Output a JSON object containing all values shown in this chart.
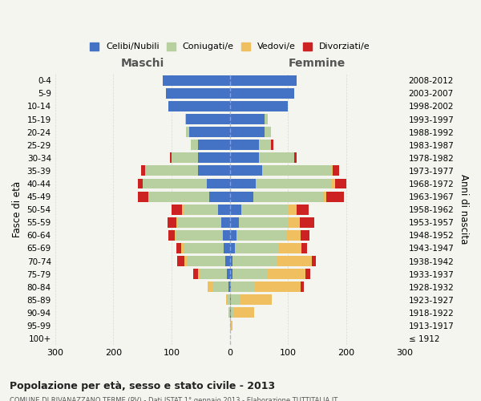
{
  "age_groups": [
    "100+",
    "95-99",
    "90-94",
    "85-89",
    "80-84",
    "75-79",
    "70-74",
    "65-69",
    "60-64",
    "55-59",
    "50-54",
    "45-49",
    "40-44",
    "35-39",
    "30-34",
    "25-29",
    "20-24",
    "15-19",
    "10-14",
    "5-9",
    "0-4"
  ],
  "birth_years": [
    "≤ 1912",
    "1913-1917",
    "1918-1922",
    "1923-1927",
    "1928-1932",
    "1933-1937",
    "1938-1942",
    "1943-1947",
    "1948-1952",
    "1953-1957",
    "1958-1962",
    "1963-1967",
    "1968-1972",
    "1973-1977",
    "1978-1982",
    "1983-1987",
    "1988-1992",
    "1993-1997",
    "1998-2002",
    "2003-2007",
    "2008-2012"
  ],
  "maschi": {
    "celibi": [
      0,
      0,
      0,
      0,
      2,
      5,
      8,
      10,
      12,
      15,
      20,
      35,
      40,
      55,
      55,
      55,
      70,
      75,
      105,
      110,
      115
    ],
    "coniugati": [
      0,
      0,
      2,
      5,
      28,
      45,
      65,
      70,
      80,
      75,
      60,
      105,
      110,
      90,
      45,
      12,
      5,
      2,
      0,
      0,
      0
    ],
    "vedovi": [
      0,
      0,
      0,
      2,
      8,
      5,
      5,
      4,
      3,
      2,
      2,
      0,
      0,
      0,
      0,
      0,
      0,
      0,
      0,
      0,
      0
    ],
    "divorziati": [
      0,
      0,
      0,
      0,
      0,
      8,
      12,
      8,
      10,
      15,
      18,
      18,
      8,
      8,
      3,
      0,
      0,
      0,
      0,
      0,
      0
    ]
  },
  "femmine": {
    "nubili": [
      0,
      0,
      2,
      2,
      2,
      5,
      5,
      8,
      12,
      15,
      20,
      40,
      45,
      55,
      50,
      50,
      60,
      60,
      100,
      110,
      115
    ],
    "coniugate": [
      0,
      2,
      5,
      15,
      40,
      60,
      75,
      75,
      85,
      85,
      80,
      120,
      130,
      120,
      60,
      20,
      10,
      5,
      0,
      0,
      0
    ],
    "vedove": [
      0,
      2,
      35,
      55,
      80,
      65,
      60,
      40,
      25,
      20,
      15,
      5,
      5,
      2,
      0,
      0,
      0,
      0,
      0,
      0,
      0
    ],
    "divorziate": [
      0,
      0,
      0,
      0,
      5,
      8,
      8,
      10,
      15,
      25,
      20,
      30,
      20,
      10,
      5,
      5,
      0,
      0,
      0,
      0,
      0
    ]
  },
  "colors": {
    "celibi_nubili": "#4472c4",
    "coniugati": "#b8cfa0",
    "vedovi": "#f0c060",
    "divorziati": "#cc2222"
  },
  "title": "Popolazione per età, sesso e stato civile - 2013",
  "subtitle": "COMUNE DI RIVANAZZANO TERME (PV) - Dati ISTAT 1° gennaio 2013 - Elaborazione TUTTITALIA.IT",
  "xlabel_left": "Maschi",
  "xlabel_right": "Femmine",
  "ylabel_left": "Fasce di età",
  "ylabel_right": "Anni di nascita",
  "xlim": 300,
  "legend_labels": [
    "Celibi/Nubili",
    "Coniugati/e",
    "Vedovi/e",
    "Divorziati/e"
  ],
  "background_color": "#f5f5f0",
  "bar_height": 0.8
}
